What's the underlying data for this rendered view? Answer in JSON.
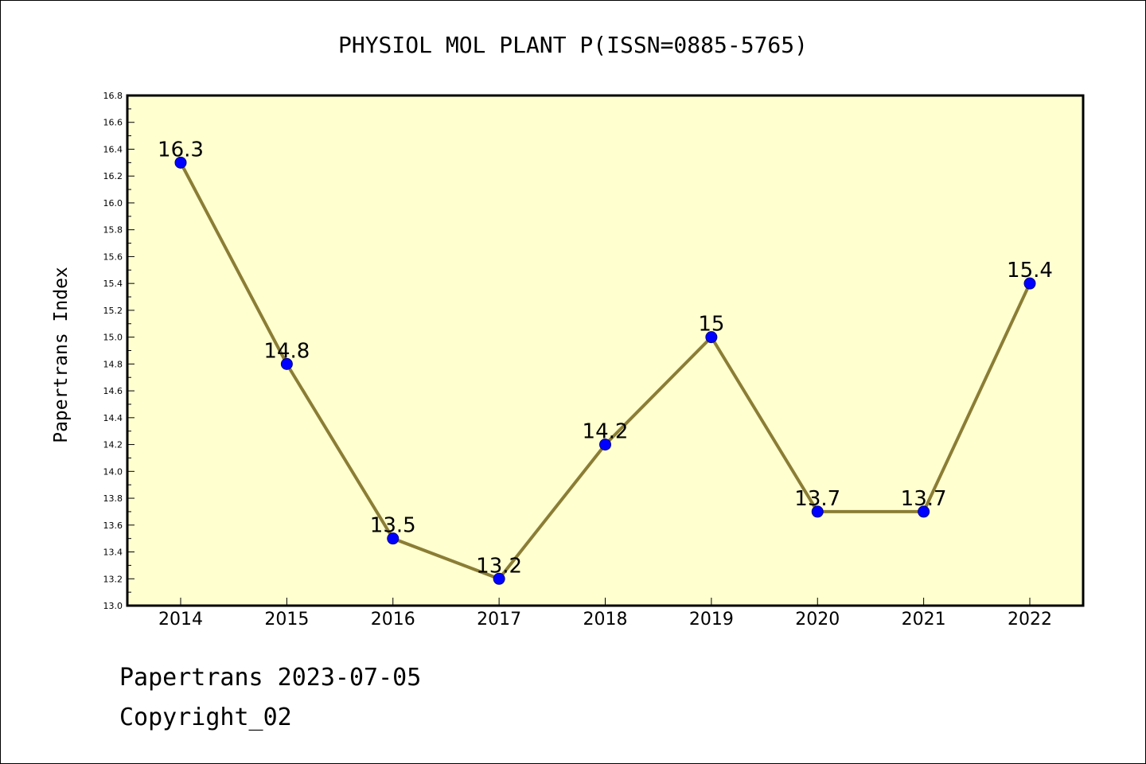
{
  "chart_data": {
    "type": "line",
    "title": "PHYSIOL MOL PLANT P(ISSN=0885-5765)",
    "xlabel": "",
    "ylabel": "Papertrans Index",
    "categories": [
      "2014",
      "2015",
      "2016",
      "2017",
      "2018",
      "2019",
      "2020",
      "2021",
      "2022"
    ],
    "series": [
      {
        "values": [
          16.3,
          14.8,
          13.5,
          13.2,
          14.2,
          15.0,
          13.7,
          13.7,
          15.4
        ],
        "labels": [
          "16.3",
          "14.8",
          "13.5",
          "13.2",
          "14.2",
          "15",
          "13.7",
          "13.7",
          "15.4"
        ]
      }
    ],
    "ylim": [
      13.0,
      16.8
    ],
    "yticks": [
      "13.0",
      "13.2",
      "13.4",
      "13.6",
      "13.8",
      "14.0",
      "14.2",
      "14.4",
      "14.6",
      "14.8",
      "15.0",
      "15.2",
      "15.4",
      "15.6",
      "15.8",
      "16.0",
      "16.2",
      "16.4",
      "16.6",
      "16.8"
    ],
    "grid": false,
    "colors": {
      "plot_background": "#ffffd0",
      "line": "#8b7d35",
      "marker": "#0000ff"
    }
  },
  "footer": {
    "date_text": "Papertrans 2023-07-05",
    "copyright_text": "Copyright_02"
  }
}
